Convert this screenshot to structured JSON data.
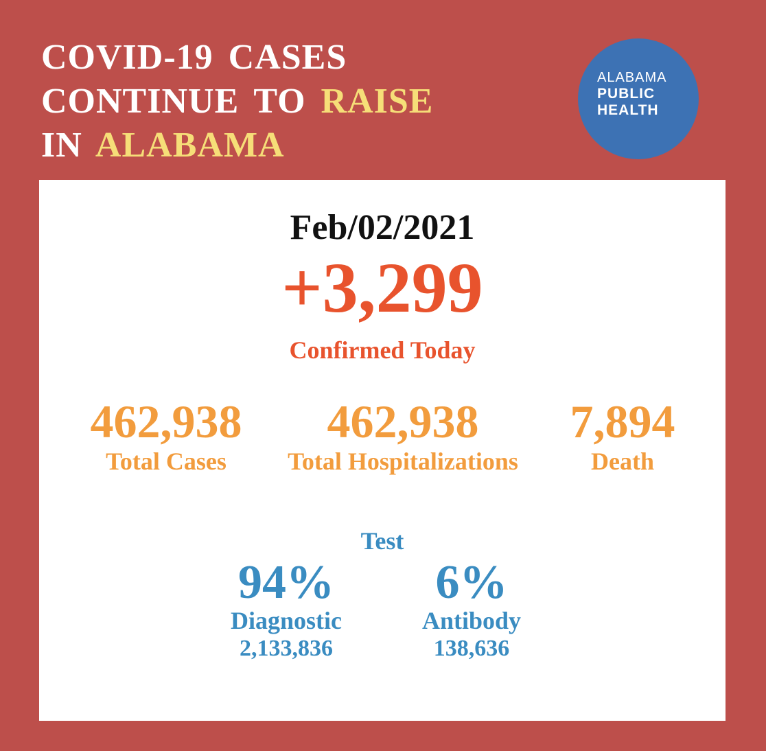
{
  "headline": {
    "line1": "COVID-19 CASES",
    "line2_part1": "CONTINUE TO ",
    "line2_highlight": "RAISE",
    "line3_part1": "IN ",
    "line3_highlight": "ALABAMA"
  },
  "logo": {
    "line1": "ALABAMA",
    "line2": "PUBLIC",
    "line3": "HEALTH"
  },
  "report": {
    "date": "Feb/02/2021",
    "confirmed_today_value": "+3,299",
    "confirmed_today_label": "Confirmed Today"
  },
  "totals": [
    {
      "value": "462,938",
      "label": "Total Cases"
    },
    {
      "value": "462,938",
      "label": "Total Hospitalizations"
    },
    {
      "value": "7,894",
      "label": "Death"
    }
  ],
  "tests": {
    "title": "Test",
    "items": [
      {
        "percent": "94%",
        "label": "Diagnostic",
        "count": "2,133,836"
      },
      {
        "percent": "6%",
        "label": "Antibody",
        "count": "138,636"
      }
    ]
  },
  "colors": {
    "background": "#bd4f4b",
    "headline_highlight": "#f6de78",
    "logo_circle": "#3d72b4",
    "confirmed": "#e8532d",
    "totals": "#f29c3d",
    "tests": "#3a8cc1"
  }
}
